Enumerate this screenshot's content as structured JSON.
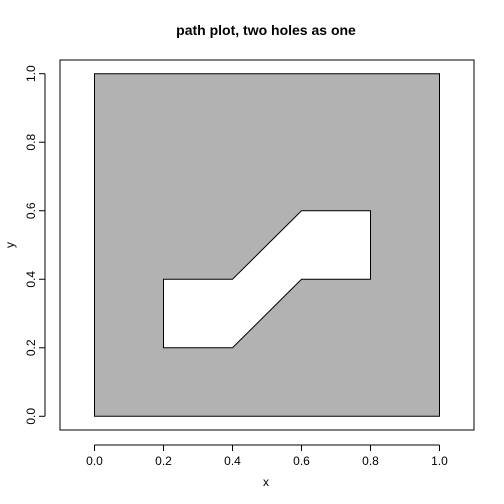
{
  "chart_data": {
    "type": "area",
    "title": "path plot, two holes as one",
    "xlabel": "x",
    "ylabel": "y",
    "xlim": [
      -0.1,
      1.1
    ],
    "ylim": [
      -0.04,
      1.04
    ],
    "xticks": [
      0.0,
      0.2,
      0.4,
      0.6,
      0.8,
      1.0
    ],
    "yticks": [
      0.0,
      0.2,
      0.4,
      0.6,
      0.8,
      1.0
    ],
    "xtick_labels": [
      "0.0",
      "0.2",
      "0.4",
      "0.6",
      "0.8",
      "1.0"
    ],
    "ytick_labels": [
      "0.0",
      "0.2",
      "0.4",
      "0.6",
      "0.8",
      "1.0"
    ],
    "grid": false,
    "fill_rule": "evenodd",
    "fill_color": "#b2b2b2",
    "outer_path": {
      "x": [
        0,
        1,
        1,
        0
      ],
      "y": [
        0,
        0,
        1,
        1
      ]
    },
    "hole_path": {
      "x": [
        0.2,
        0.4,
        0.6,
        0.8,
        0.8,
        0.6,
        0.4,
        0.2
      ],
      "y": [
        0.2,
        0.2,
        0.4,
        0.4,
        0.6,
        0.6,
        0.4,
        0.4
      ]
    }
  }
}
